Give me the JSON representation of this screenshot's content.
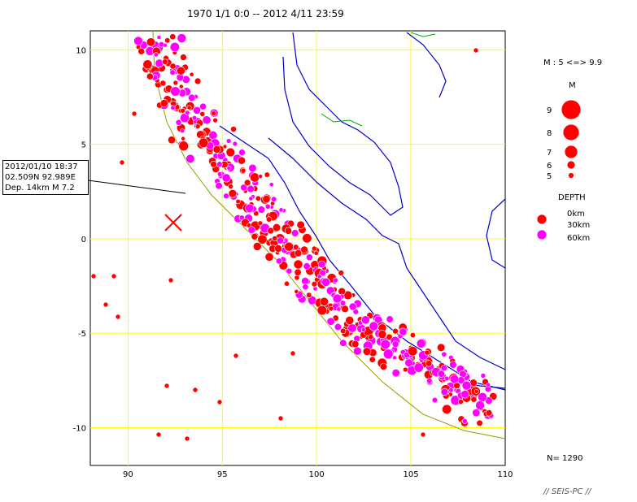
{
  "title": "1970 1/1 0:0 -- 2012 4/11 23:59",
  "annotation": {
    "line1": "2012/01/10 18:37",
    "line2": "02.509N  92.989E",
    "line3": "Dep. 14km   M 7.2"
  },
  "map": {
    "lon_range": [
      88,
      110
    ],
    "lat_range": [
      -12,
      11
    ],
    "x_ticks": [
      "90",
      "95",
      "100",
      "105",
      "110"
    ],
    "y_ticks": [
      "10",
      "5",
      "0",
      "-5",
      "-10"
    ],
    "mainshock": {
      "lon": 92.5,
      "lat": 0.8,
      "label": "X"
    }
  },
  "legend": {
    "magnitude_range": "M : 5 <=> 9.9",
    "magnitude_title": "M",
    "magnitudes": [
      "9",
      "8",
      "7",
      "6",
      "5"
    ],
    "depth_title": "DEPTH",
    "depths": [
      "0km",
      "30km",
      "60km"
    ]
  },
  "count": "N= 1290",
  "credit": "// SEIS-PC //",
  "colors": {
    "shallow": "#ff0000",
    "deep": "#ff00ff",
    "coast": "#0000cc",
    "grid": "#ffff00",
    "trench": "#999900"
  }
}
